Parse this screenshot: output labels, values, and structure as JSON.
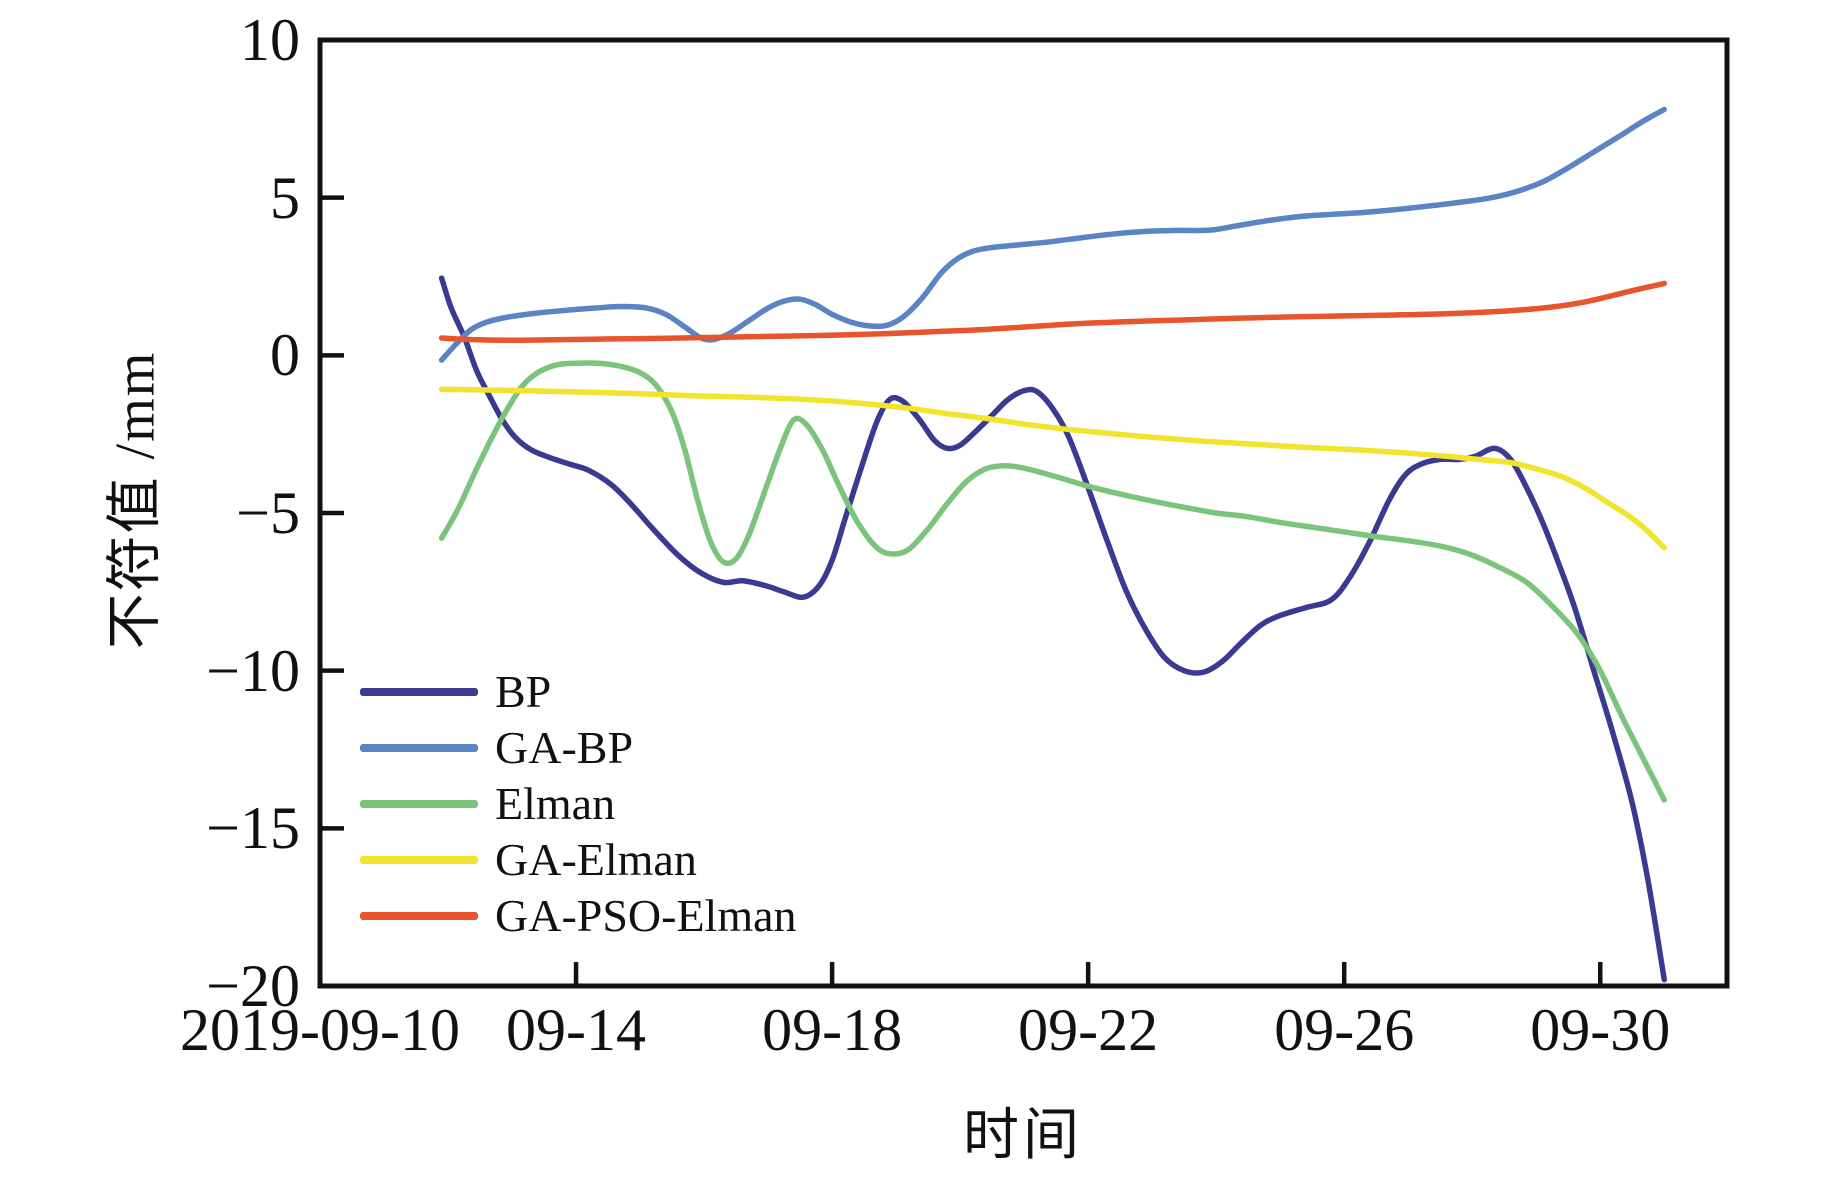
{
  "figure": {
    "background": "#ffffff",
    "spine_color": "#111111"
  },
  "chart_data": {
    "type": "line",
    "title": "",
    "xlabel": "时间",
    "ylabel": "不符值 /mm",
    "x_unit": "date in 2019; x value = day of September (31 = Oct 1)",
    "xlim": [
      10,
      31.98
    ],
    "ylim": [
      -20,
      10
    ],
    "x_tick_values": [
      10,
      14,
      18,
      22,
      26,
      30
    ],
    "x_tick_labels": [
      "2019-09-10",
      "09-14",
      "09-18",
      "09-22",
      "09-26",
      "09-30"
    ],
    "y_ticks": [
      10,
      5,
      0,
      -5,
      -10,
      -15,
      -20
    ],
    "grid": false,
    "legend_position": "lower-left",
    "series": [
      {
        "name": "BP",
        "color": "#3a3a90",
        "points": [
          [
            11.9,
            2.45
          ],
          [
            12.05,
            1.5
          ],
          [
            12.25,
            0.6
          ],
          [
            12.45,
            -0.5
          ],
          [
            12.65,
            -1.3
          ],
          [
            12.85,
            -2.05
          ],
          [
            13.05,
            -2.6
          ],
          [
            13.3,
            -3.0
          ],
          [
            13.6,
            -3.25
          ],
          [
            13.9,
            -3.45
          ],
          [
            14.2,
            -3.65
          ],
          [
            14.55,
            -4.1
          ],
          [
            14.85,
            -4.7
          ],
          [
            15.2,
            -5.5
          ],
          [
            15.6,
            -6.35
          ],
          [
            15.95,
            -6.9
          ],
          [
            16.3,
            -7.2
          ],
          [
            16.6,
            -7.15
          ],
          [
            16.95,
            -7.3
          ],
          [
            17.25,
            -7.5
          ],
          [
            17.55,
            -7.67
          ],
          [
            17.8,
            -7.3
          ],
          [
            18.0,
            -6.5
          ],
          [
            18.2,
            -5.2
          ],
          [
            18.45,
            -3.6
          ],
          [
            18.7,
            -2.1
          ],
          [
            18.9,
            -1.4
          ],
          [
            19.1,
            -1.45
          ],
          [
            19.35,
            -2.0
          ],
          [
            19.6,
            -2.7
          ],
          [
            19.8,
            -2.95
          ],
          [
            20.0,
            -2.85
          ],
          [
            20.25,
            -2.4
          ],
          [
            20.5,
            -1.9
          ],
          [
            20.75,
            -1.4
          ],
          [
            21.0,
            -1.12
          ],
          [
            21.2,
            -1.15
          ],
          [
            21.45,
            -1.7
          ],
          [
            21.7,
            -2.6
          ],
          [
            22.0,
            -4.2
          ],
          [
            22.3,
            -5.9
          ],
          [
            22.6,
            -7.5
          ],
          [
            22.9,
            -8.7
          ],
          [
            23.2,
            -9.6
          ],
          [
            23.5,
            -10.0
          ],
          [
            23.8,
            -10.05
          ],
          [
            24.1,
            -9.7
          ],
          [
            24.4,
            -9.1
          ],
          [
            24.7,
            -8.55
          ],
          [
            25.0,
            -8.25
          ],
          [
            25.4,
            -8.0
          ],
          [
            25.8,
            -7.75
          ],
          [
            26.1,
            -7.0
          ],
          [
            26.4,
            -5.9
          ],
          [
            26.7,
            -4.6
          ],
          [
            26.95,
            -3.8
          ],
          [
            27.2,
            -3.45
          ],
          [
            27.5,
            -3.3
          ],
          [
            27.8,
            -3.3
          ],
          [
            28.05,
            -3.2
          ],
          [
            28.35,
            -2.95
          ],
          [
            28.6,
            -3.3
          ],
          [
            28.85,
            -4.2
          ],
          [
            29.1,
            -5.3
          ],
          [
            29.35,
            -6.6
          ],
          [
            29.6,
            -8.0
          ],
          [
            29.9,
            -10.0
          ],
          [
            30.2,
            -12.0
          ],
          [
            30.5,
            -14.2
          ],
          [
            30.75,
            -16.7
          ],
          [
            31.0,
            -19.8
          ]
        ]
      },
      {
        "name": "GA-BP",
        "color": "#5b84c4",
        "points": [
          [
            11.9,
            -0.15
          ],
          [
            12.1,
            0.3
          ],
          [
            12.35,
            0.8
          ],
          [
            12.6,
            1.05
          ],
          [
            12.9,
            1.2
          ],
          [
            13.3,
            1.32
          ],
          [
            13.8,
            1.42
          ],
          [
            14.3,
            1.5
          ],
          [
            14.7,
            1.55
          ],
          [
            15.1,
            1.5
          ],
          [
            15.4,
            1.3
          ],
          [
            15.7,
            0.9
          ],
          [
            15.95,
            0.55
          ],
          [
            16.15,
            0.5
          ],
          [
            16.4,
            0.7
          ],
          [
            16.7,
            1.1
          ],
          [
            17.0,
            1.5
          ],
          [
            17.25,
            1.72
          ],
          [
            17.5,
            1.78
          ],
          [
            17.75,
            1.6
          ],
          [
            18.0,
            1.3
          ],
          [
            18.3,
            1.05
          ],
          [
            18.6,
            0.93
          ],
          [
            18.85,
            0.95
          ],
          [
            19.1,
            1.2
          ],
          [
            19.4,
            1.8
          ],
          [
            19.7,
            2.6
          ],
          [
            19.95,
            3.05
          ],
          [
            20.2,
            3.3
          ],
          [
            20.5,
            3.42
          ],
          [
            20.9,
            3.5
          ],
          [
            21.4,
            3.6
          ],
          [
            21.9,
            3.73
          ],
          [
            22.4,
            3.85
          ],
          [
            22.9,
            3.93
          ],
          [
            23.4,
            3.96
          ],
          [
            23.9,
            3.97
          ],
          [
            24.3,
            4.1
          ],
          [
            24.8,
            4.27
          ],
          [
            25.3,
            4.4
          ],
          [
            25.8,
            4.47
          ],
          [
            26.3,
            4.53
          ],
          [
            26.8,
            4.62
          ],
          [
            27.3,
            4.73
          ],
          [
            27.8,
            4.85
          ],
          [
            28.3,
            5.0
          ],
          [
            28.7,
            5.2
          ],
          [
            29.1,
            5.5
          ],
          [
            29.5,
            5.95
          ],
          [
            29.9,
            6.45
          ],
          [
            30.3,
            6.95
          ],
          [
            30.65,
            7.4
          ],
          [
            31.0,
            7.8
          ]
        ]
      },
      {
        "name": "Elman",
        "color": "#7cc47c",
        "points": [
          [
            11.9,
            -5.8
          ],
          [
            12.15,
            -4.9
          ],
          [
            12.4,
            -3.8
          ],
          [
            12.65,
            -2.75
          ],
          [
            12.9,
            -1.8
          ],
          [
            13.15,
            -1.0
          ],
          [
            13.4,
            -0.55
          ],
          [
            13.7,
            -0.3
          ],
          [
            14.0,
            -0.25
          ],
          [
            14.35,
            -0.25
          ],
          [
            14.7,
            -0.35
          ],
          [
            15.0,
            -0.55
          ],
          [
            15.25,
            -0.95
          ],
          [
            15.5,
            -1.8
          ],
          [
            15.7,
            -3.0
          ],
          [
            15.9,
            -4.6
          ],
          [
            16.1,
            -5.9
          ],
          [
            16.3,
            -6.55
          ],
          [
            16.5,
            -6.45
          ],
          [
            16.7,
            -5.7
          ],
          [
            16.95,
            -4.3
          ],
          [
            17.2,
            -2.9
          ],
          [
            17.4,
            -2.05
          ],
          [
            17.6,
            -2.2
          ],
          [
            17.85,
            -3.0
          ],
          [
            18.1,
            -4.1
          ],
          [
            18.4,
            -5.3
          ],
          [
            18.7,
            -6.1
          ],
          [
            18.95,
            -6.3
          ],
          [
            19.2,
            -6.15
          ],
          [
            19.5,
            -5.5
          ],
          [
            19.8,
            -4.7
          ],
          [
            20.1,
            -4.0
          ],
          [
            20.4,
            -3.6
          ],
          [
            20.7,
            -3.5
          ],
          [
            21.0,
            -3.58
          ],
          [
            21.5,
            -3.85
          ],
          [
            22.0,
            -4.15
          ],
          [
            22.5,
            -4.4
          ],
          [
            23.0,
            -4.62
          ],
          [
            23.5,
            -4.82
          ],
          [
            24.0,
            -5.0
          ],
          [
            24.5,
            -5.12
          ],
          [
            25.0,
            -5.3
          ],
          [
            25.5,
            -5.45
          ],
          [
            26.0,
            -5.6
          ],
          [
            26.5,
            -5.75
          ],
          [
            27.0,
            -5.88
          ],
          [
            27.5,
            -6.05
          ],
          [
            27.95,
            -6.3
          ],
          [
            28.4,
            -6.7
          ],
          [
            28.85,
            -7.2
          ],
          [
            29.25,
            -7.95
          ],
          [
            29.65,
            -8.85
          ],
          [
            30.0,
            -10.0
          ],
          [
            30.35,
            -11.5
          ],
          [
            30.7,
            -12.9
          ],
          [
            31.0,
            -14.1
          ]
        ]
      },
      {
        "name": "GA-Elman",
        "color": "#f2e32c",
        "points": [
          [
            11.9,
            -1.08
          ],
          [
            12.6,
            -1.1
          ],
          [
            13.4,
            -1.13
          ],
          [
            14.2,
            -1.17
          ],
          [
            15.0,
            -1.22
          ],
          [
            15.8,
            -1.28
          ],
          [
            16.6,
            -1.32
          ],
          [
            17.4,
            -1.38
          ],
          [
            18.0,
            -1.45
          ],
          [
            18.6,
            -1.55
          ],
          [
            19.2,
            -1.68
          ],
          [
            19.8,
            -1.85
          ],
          [
            20.4,
            -2.0
          ],
          [
            21.0,
            -2.18
          ],
          [
            21.6,
            -2.33
          ],
          [
            22.2,
            -2.45
          ],
          [
            23.0,
            -2.6
          ],
          [
            23.8,
            -2.72
          ],
          [
            24.6,
            -2.82
          ],
          [
            25.4,
            -2.92
          ],
          [
            26.2,
            -3.0
          ],
          [
            27.0,
            -3.1
          ],
          [
            27.6,
            -3.2
          ],
          [
            28.1,
            -3.3
          ],
          [
            28.6,
            -3.4
          ],
          [
            29.0,
            -3.6
          ],
          [
            29.4,
            -3.85
          ],
          [
            29.8,
            -4.25
          ],
          [
            30.1,
            -4.65
          ],
          [
            30.45,
            -5.1
          ],
          [
            30.7,
            -5.5
          ],
          [
            31.0,
            -6.1
          ]
        ]
      },
      {
        "name": "GA-PSO-Elman",
        "color": "#e8542b",
        "points": [
          [
            11.9,
            0.55
          ],
          [
            12.4,
            0.5
          ],
          [
            13.0,
            0.48
          ],
          [
            13.8,
            0.5
          ],
          [
            14.6,
            0.52
          ],
          [
            15.4,
            0.54
          ],
          [
            16.2,
            0.57
          ],
          [
            17.0,
            0.6
          ],
          [
            17.8,
            0.63
          ],
          [
            18.4,
            0.66
          ],
          [
            19.0,
            0.7
          ],
          [
            19.6,
            0.75
          ],
          [
            20.2,
            0.8
          ],
          [
            20.8,
            0.87
          ],
          [
            21.4,
            0.95
          ],
          [
            22.0,
            1.02
          ],
          [
            22.8,
            1.08
          ],
          [
            23.6,
            1.13
          ],
          [
            24.4,
            1.18
          ],
          [
            25.2,
            1.22
          ],
          [
            26.0,
            1.25
          ],
          [
            26.8,
            1.28
          ],
          [
            27.6,
            1.32
          ],
          [
            28.2,
            1.37
          ],
          [
            28.7,
            1.43
          ],
          [
            29.2,
            1.52
          ],
          [
            29.7,
            1.67
          ],
          [
            30.1,
            1.85
          ],
          [
            30.5,
            2.05
          ],
          [
            31.0,
            2.28
          ]
        ]
      }
    ]
  }
}
